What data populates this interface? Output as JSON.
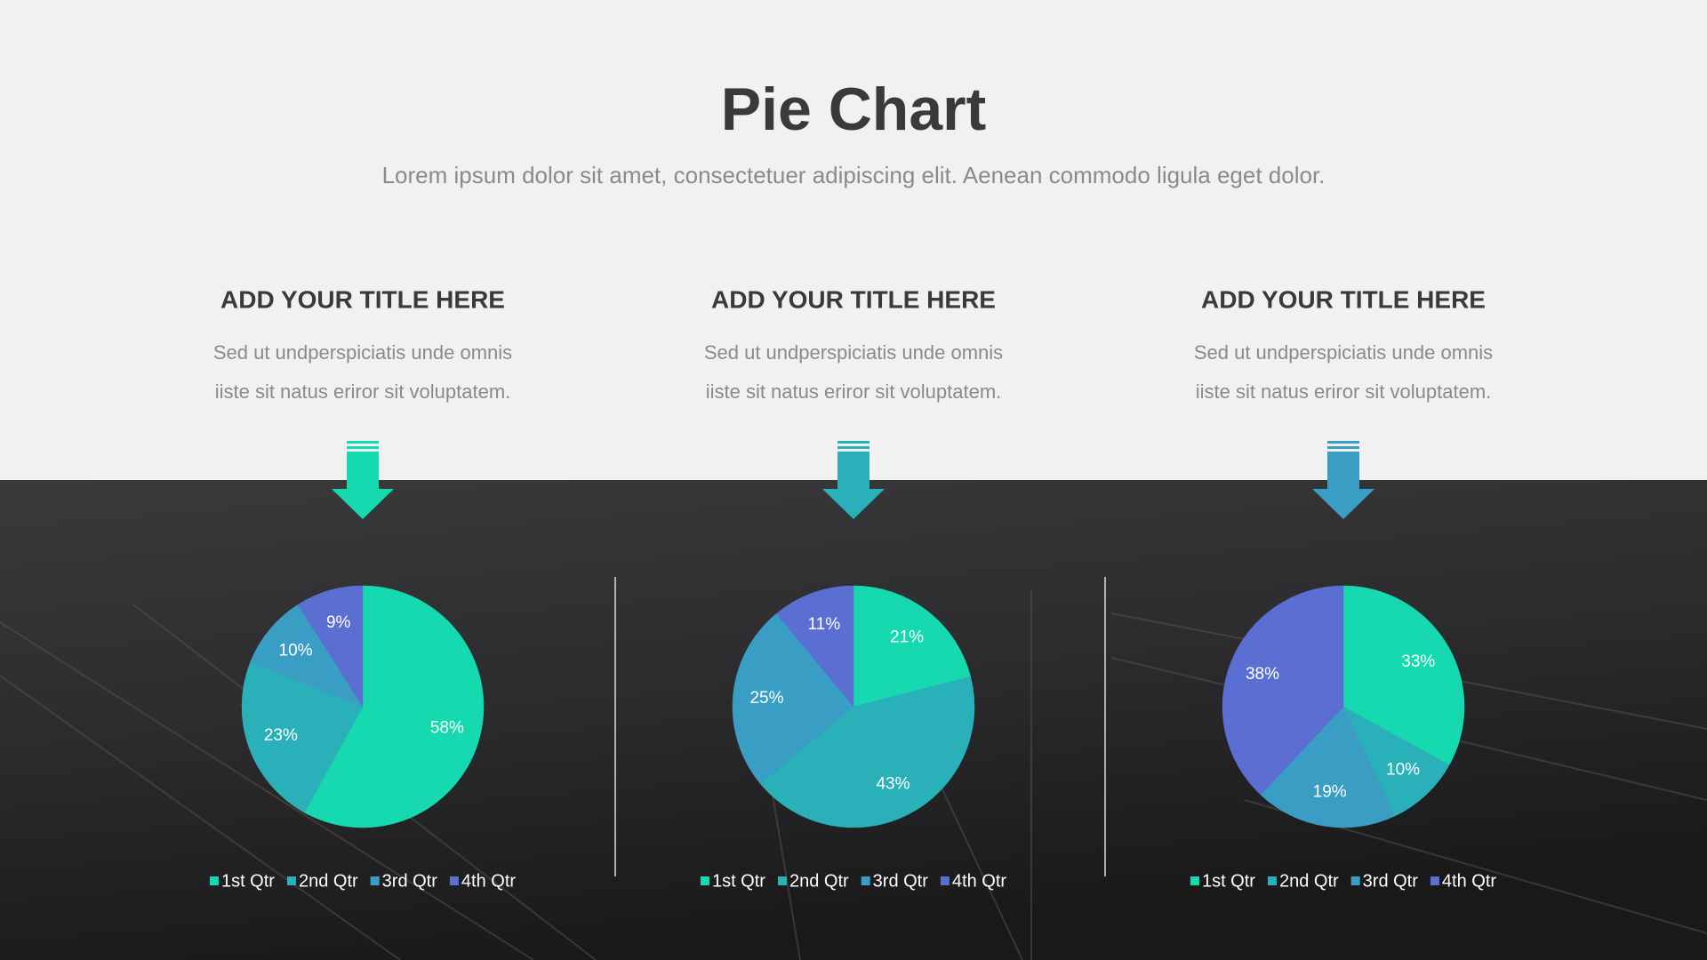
{
  "header": {
    "title": "Pie Chart",
    "subtitle": "Lorem ipsum dolor sit amet, consectetuer adipiscing elit. Aenean commodo ligula eget dolor."
  },
  "chart_data": [
    {
      "type": "pie",
      "title": "ADD YOUR TITLE HERE",
      "description": [
        "Sed ut undperspiciatis unde omnis",
        "iiste sit natus eriror sit voluptatem."
      ],
      "categories": [
        "1st Qtr",
        "2nd Qtr",
        "3rd Qtr",
        "4th Qtr"
      ],
      "values": [
        58,
        23,
        10,
        9
      ],
      "value_labels": [
        "58%",
        "23%",
        "10%",
        "9%"
      ],
      "colors": [
        "#17d9b0",
        "#2ab0b8",
        "#3a9ec4",
        "#5a6fd1"
      ]
    },
    {
      "type": "pie",
      "title": "ADD YOUR TITLE HERE",
      "description": [
        "Sed ut undperspiciatis unde omnis",
        "iiste sit natus eriror sit voluptatem."
      ],
      "categories": [
        "1st Qtr",
        "2nd Qtr",
        "3rd Qtr",
        "4th Qtr"
      ],
      "values": [
        21,
        43,
        25,
        11
      ],
      "value_labels": [
        "21%",
        "43%",
        "25%",
        "11%"
      ],
      "colors": [
        "#17d9b0",
        "#2ab0b8",
        "#3a9ec4",
        "#5a6fd1"
      ]
    },
    {
      "type": "pie",
      "title": "ADD YOUR TITLE HERE",
      "description": [
        "Sed ut undperspiciatis unde omnis",
        "iiste sit natus eriror sit voluptatem."
      ],
      "categories": [
        "1st Qtr",
        "2nd Qtr",
        "3rd Qtr",
        "4th Qtr"
      ],
      "values": [
        33,
        10,
        19,
        38
      ],
      "value_labels": [
        "33%",
        "10%",
        "19%",
        "38%"
      ],
      "colors": [
        "#17d9b0",
        "#2ab0b8",
        "#3a9ec4",
        "#5a6fd1"
      ]
    }
  ]
}
